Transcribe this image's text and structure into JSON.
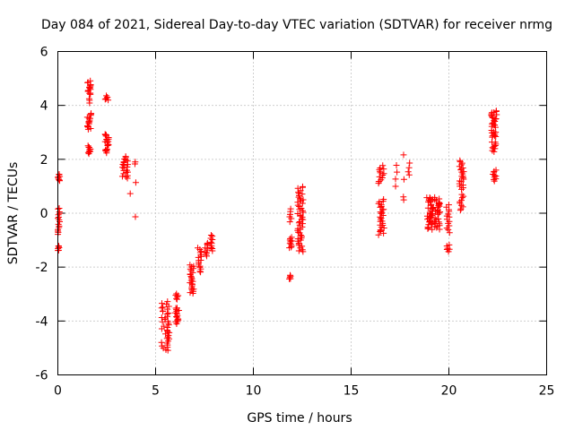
{
  "chart_data": {
    "type": "scatter",
    "title": "Day 084 of 2021, Sidereal Day-to-day VTEC variation (SDTVAR) for receiver nrmg",
    "xlabel": "GPS time / hours",
    "ylabel": "SDTVAR / TECUs",
    "xlim": [
      0,
      25
    ],
    "ylim": [
      -6,
      6
    ],
    "xticks": [
      0,
      5,
      10,
      15,
      20,
      25
    ],
    "yticks": [
      -6,
      -4,
      -2,
      0,
      2,
      4,
      6
    ],
    "xtick_labels": [
      "0",
      "5",
      "10",
      "15",
      "20",
      "25"
    ],
    "ytick_labels": [
      "-6",
      "-4",
      "-2",
      "0",
      "2",
      "4",
      "6"
    ],
    "grid": true,
    "marker": "+",
    "color": "#ff0000",
    "clusters": [
      {
        "x": 0.05,
        "y0": 1.2,
        "y1": 1.45,
        "n": 8,
        "dx": 0.05
      },
      {
        "x": 0.05,
        "y0": -0.8,
        "y1": 0.2,
        "n": 16,
        "dx": 0.06
      },
      {
        "x": 0.05,
        "y0": -1.4,
        "y1": -1.2,
        "n": 6,
        "dx": 0.05
      },
      {
        "x": 1.6,
        "y0": 4.4,
        "y1": 4.9,
        "n": 14,
        "dx": 0.08
      },
      {
        "x": 1.6,
        "y0": 4.1,
        "y1": 4.25,
        "n": 3,
        "dx": 0.05
      },
      {
        "x": 1.6,
        "y0": 3.1,
        "y1": 3.7,
        "n": 16,
        "dx": 0.1
      },
      {
        "x": 1.6,
        "y0": 2.2,
        "y1": 2.5,
        "n": 10,
        "dx": 0.08
      },
      {
        "x": 2.5,
        "y0": 4.2,
        "y1": 4.35,
        "n": 6,
        "dx": 0.08
      },
      {
        "x": 2.5,
        "y0": 2.5,
        "y1": 2.95,
        "n": 14,
        "dx": 0.1
      },
      {
        "x": 2.5,
        "y0": 2.25,
        "y1": 2.4,
        "n": 6,
        "dx": 0.08
      },
      {
        "x": 3.45,
        "y0": 1.3,
        "y1": 2.1,
        "n": 22,
        "dx": 0.15
      },
      {
        "x": 3.7,
        "y0": 0.7,
        "y1": 0.75,
        "n": 1,
        "dx": 0.02
      },
      {
        "x": 3.95,
        "y0": 1.85,
        "y1": 1.9,
        "n": 2,
        "dx": 0.15
      },
      {
        "x": 4.0,
        "y0": 1.1,
        "y1": 1.15,
        "n": 1,
        "dx": 0.02
      },
      {
        "x": 3.95,
        "y0": -0.15,
        "y1": -0.1,
        "n": 1,
        "dx": 0.02
      },
      {
        "x": 5.5,
        "y0": -5.1,
        "y1": -3.3,
        "n": 40,
        "dx": 0.2
      },
      {
        "x": 6.1,
        "y0": -4.1,
        "y1": -3.5,
        "n": 16,
        "dx": 0.1
      },
      {
        "x": 6.1,
        "y0": -3.2,
        "y1": -3.0,
        "n": 6,
        "dx": 0.08
      },
      {
        "x": 6.85,
        "y0": -3.0,
        "y1": -1.9,
        "n": 24,
        "dx": 0.12
      },
      {
        "x": 7.25,
        "y0": -2.2,
        "y1": -1.3,
        "n": 16,
        "dx": 0.1
      },
      {
        "x": 7.6,
        "y0": -1.6,
        "y1": -1.1,
        "n": 10,
        "dx": 0.1
      },
      {
        "x": 7.85,
        "y0": -1.4,
        "y1": -0.8,
        "n": 10,
        "dx": 0.06
      },
      {
        "x": 11.9,
        "y0": -2.45,
        "y1": -2.3,
        "n": 5,
        "dx": 0.08
      },
      {
        "x": 11.9,
        "y0": -1.3,
        "y1": -0.9,
        "n": 10,
        "dx": 0.06
      },
      {
        "x": 11.9,
        "y0": -0.3,
        "y1": 0.15,
        "n": 6,
        "dx": 0.05
      },
      {
        "x": 12.4,
        "y0": -1.45,
        "y1": 1.0,
        "n": 50,
        "dx": 0.15
      },
      {
        "x": 16.55,
        "y0": -0.8,
        "y1": 0.5,
        "n": 28,
        "dx": 0.15
      },
      {
        "x": 16.55,
        "y0": 1.1,
        "y1": 1.75,
        "n": 14,
        "dx": 0.15
      },
      {
        "x": 17.3,
        "y0": 1.0,
        "y1": 1.8,
        "n": 4,
        "dx": 0.05
      },
      {
        "x": 17.7,
        "y0": 0.5,
        "y1": 0.6,
        "n": 2,
        "dx": 0.04
      },
      {
        "x": 17.7,
        "y0": 1.2,
        "y1": 1.3,
        "n": 1,
        "dx": 0.02
      },
      {
        "x": 17.7,
        "y0": 2.1,
        "y1": 2.2,
        "n": 1,
        "dx": 0.02
      },
      {
        "x": 17.95,
        "y0": 1.4,
        "y1": 1.85,
        "n": 4,
        "dx": 0.05
      },
      {
        "x": 19.2,
        "y0": -0.6,
        "y1": 0.6,
        "n": 70,
        "dx": 0.35
      },
      {
        "x": 19.95,
        "y0": -0.7,
        "y1": 0.3,
        "n": 14,
        "dx": 0.1
      },
      {
        "x": 19.95,
        "y0": -1.4,
        "y1": -1.2,
        "n": 6,
        "dx": 0.08
      },
      {
        "x": 20.65,
        "y0": 0.1,
        "y1": 0.7,
        "n": 10,
        "dx": 0.1
      },
      {
        "x": 20.65,
        "y0": 0.9,
        "y1": 1.95,
        "n": 22,
        "dx": 0.12
      },
      {
        "x": 22.3,
        "y0": 3.2,
        "y1": 3.8,
        "n": 22,
        "dx": 0.15
      },
      {
        "x": 22.3,
        "y0": 2.8,
        "y1": 3.05,
        "n": 10,
        "dx": 0.12
      },
      {
        "x": 22.3,
        "y0": 2.3,
        "y1": 2.65,
        "n": 10,
        "dx": 0.12
      },
      {
        "x": 22.3,
        "y0": 1.2,
        "y1": 1.6,
        "n": 10,
        "dx": 0.12
      }
    ]
  }
}
